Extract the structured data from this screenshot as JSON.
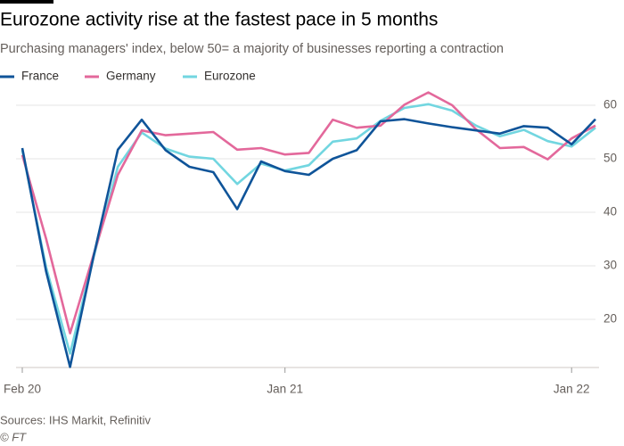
{
  "chart_data": {
    "type": "line",
    "title": "Eurozone activity rise at the fastest pace in 5 months",
    "subtitle": "Purchasing managers' index, below 50= a majority of businesses reporting a contraction",
    "categories": [
      "Feb 20",
      null,
      null,
      null,
      null,
      null,
      null,
      null,
      null,
      null,
      null,
      "Jan 21",
      null,
      null,
      null,
      null,
      null,
      null,
      null,
      null,
      null,
      null,
      null,
      "Jan 22",
      null
    ],
    "series": [
      {
        "name": "France",
        "color": "#0f5499",
        "values": [
          52.0,
          28.9,
          11.1,
          32.1,
          51.7,
          57.3,
          51.6,
          48.5,
          47.5,
          40.6,
          49.5,
          47.7,
          47.0,
          50.0,
          51.6,
          57.0,
          57.4,
          56.6,
          55.9,
          55.3,
          54.7,
          56.1,
          55.8,
          52.7,
          57.4
        ]
      },
      {
        "name": "Germany",
        "color": "#e3689b",
        "values": [
          50.7,
          35.0,
          17.4,
          32.3,
          47.0,
          55.3,
          54.4,
          54.7,
          55.0,
          51.7,
          52.0,
          50.8,
          51.1,
          57.3,
          55.8,
          56.2,
          60.1,
          62.4,
          60.0,
          55.5,
          52.0,
          52.2,
          49.9,
          53.8,
          56.2
        ]
      },
      {
        "name": "Eurozone",
        "color": "#72d6e0",
        "values": [
          51.6,
          29.7,
          13.6,
          31.9,
          48.5,
          54.9,
          51.9,
          50.4,
          50.0,
          45.3,
          49.1,
          47.8,
          48.8,
          53.2,
          53.8,
          57.1,
          59.5,
          60.2,
          59.0,
          56.2,
          54.2,
          55.4,
          53.3,
          52.3,
          55.8
        ]
      }
    ],
    "ylim": [
      11,
      63
    ],
    "yticks": [
      20,
      30,
      40,
      50,
      60
    ],
    "grid": true,
    "legend": "top-left",
    "source": "Sources: IHS Markit, Refinitiv",
    "credit": "© FT"
  }
}
